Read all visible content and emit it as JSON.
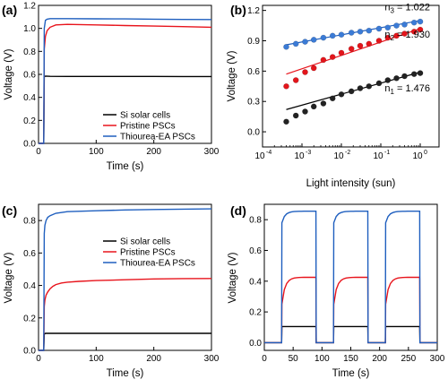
{
  "colors": {
    "si": "#000000",
    "pristine": "#e8141c",
    "thiourea": "#1f5fbf",
    "dot_black": "#222222",
    "dot_red": "#e3151b",
    "dot_blue": "#3b7bd6"
  },
  "chart_data": [
    {
      "panel": "(a)",
      "type": "line",
      "xlabel": "Time (s)",
      "ylabel": "Voltage (V)",
      "xlim": [
        0,
        300
      ],
      "ylim": [
        0,
        1.2
      ],
      "xticks": [
        "0",
        "100",
        "200",
        "300"
      ],
      "yticks": [
        "0.0",
        "0.2",
        "0.4",
        "0.6",
        "0.8",
        "1.0",
        "1.2"
      ],
      "legend_position": "bottom-right",
      "legend": [
        "Si solar cells",
        "Pristine PSCs",
        "Thiourea-EA PSCs"
      ],
      "series": [
        {
          "name": "Si solar cells",
          "x": [
            0,
            9,
            10,
            12,
            20,
            50,
            100,
            150,
            200,
            250,
            300
          ],
          "y": [
            0,
            0,
            0.58,
            0.585,
            0.583,
            0.582,
            0.582,
            0.582,
            0.582,
            0.581,
            0.581
          ]
        },
        {
          "name": "Pristine PSCs",
          "x": [
            0,
            9,
            10,
            12,
            15,
            20,
            30,
            50,
            100,
            150,
            200,
            250,
            300
          ],
          "y": [
            0,
            0,
            0.82,
            0.93,
            0.98,
            1.01,
            1.03,
            1.035,
            1.03,
            1.025,
            1.02,
            1.015,
            1.01
          ]
        },
        {
          "name": "Thiourea-EA PSCs",
          "x": [
            0,
            9,
            10,
            12,
            15,
            20,
            50,
            100,
            150,
            200,
            250,
            300
          ],
          "y": [
            0,
            0,
            1.0,
            1.07,
            1.08,
            1.085,
            1.085,
            1.083,
            1.082,
            1.08,
            1.078,
            1.077
          ]
        }
      ]
    },
    {
      "panel": "(b)",
      "type": "scatter",
      "xlabel": "Light intensity (sun)",
      "ylabel": "Voltage (V)",
      "xscale": "log",
      "xlim": [
        0.0001,
        3
      ],
      "ylim": [
        -0.15,
        1.25
      ],
      "xticks": [
        {
          "v": 0.0001,
          "e": "-4"
        },
        {
          "v": 0.001,
          "e": "-3"
        },
        {
          "v": 0.01,
          "e": "-2"
        },
        {
          "v": 0.1,
          "e": "-1"
        },
        {
          "v": 1,
          "e": "0"
        }
      ],
      "yticks": [
        "0.0",
        "0.3",
        "0.6",
        "0.9",
        "1.2"
      ],
      "annotations": [
        {
          "label": "n",
          "sub": "3",
          "text": " = 1.022",
          "x": 0.55,
          "y": 1.2
        },
        {
          "label": "n",
          "sub": "2",
          "text": " = 1.930",
          "x": 0.55,
          "y": 0.93
        },
        {
          "label": "n",
          "sub": "1",
          "text": " = 1.476",
          "x": 0.55,
          "y": 0.4
        }
      ],
      "series": [
        {
          "name": "n1",
          "x": [
            0.0004,
            0.0007,
            0.0012,
            0.002,
            0.0035,
            0.006,
            0.01,
            0.018,
            0.03,
            0.05,
            0.09,
            0.15,
            0.25,
            0.4,
            0.7,
            1.0
          ],
          "y": [
            0.1,
            0.16,
            0.2,
            0.25,
            0.28,
            0.33,
            0.37,
            0.4,
            0.43,
            0.45,
            0.48,
            0.51,
            0.53,
            0.55,
            0.57,
            0.58
          ],
          "fit": [
            [
              0.0004,
              0.22
            ],
            [
              1.0,
              0.59
            ]
          ]
        },
        {
          "name": "n2",
          "x": [
            0.0004,
            0.0007,
            0.0012,
            0.002,
            0.0035,
            0.006,
            0.01,
            0.018,
            0.03,
            0.05,
            0.09,
            0.15,
            0.25,
            0.4,
            0.7,
            1.0
          ],
          "y": [
            0.45,
            0.51,
            0.59,
            0.63,
            0.71,
            0.74,
            0.78,
            0.82,
            0.85,
            0.87,
            0.9,
            0.93,
            0.95,
            0.97,
            0.99,
            1.01
          ],
          "fit": [
            [
              0.0004,
              0.57
            ],
            [
              1.0,
              1.02
            ]
          ]
        },
        {
          "name": "n3",
          "x": [
            0.0004,
            0.0007,
            0.0012,
            0.002,
            0.0035,
            0.006,
            0.01,
            0.018,
            0.03,
            0.05,
            0.09,
            0.15,
            0.25,
            0.4,
            0.7,
            1.0
          ],
          "y": [
            0.84,
            0.87,
            0.89,
            0.91,
            0.93,
            0.95,
            0.96,
            0.98,
            0.99,
            1.0,
            1.02,
            1.03,
            1.05,
            1.06,
            1.08,
            1.09
          ],
          "fit": [
            [
              0.0004,
              0.86
            ],
            [
              1.0,
              1.1
            ]
          ]
        }
      ]
    },
    {
      "panel": "(c)",
      "type": "line",
      "xlabel": "Time (s)",
      "ylabel": "Voltage (V)",
      "xlim": [
        0,
        300
      ],
      "ylim": [
        0,
        0.9
      ],
      "xticks": [
        "0",
        "100",
        "200",
        "300"
      ],
      "yticks": [
        "0.0",
        "0.2",
        "0.4",
        "0.6",
        "0.8"
      ],
      "legend_position": "center-right",
      "legend": [
        "Si solar cells",
        "Pristine PSCs",
        "Thiourea-EA PSCs"
      ],
      "series": [
        {
          "name": "Si solar cells",
          "x": [
            0,
            9,
            10,
            12,
            50,
            100,
            150,
            200,
            250,
            300
          ],
          "y": [
            0,
            0,
            0.1,
            0.105,
            0.105,
            0.105,
            0.105,
            0.105,
            0.105,
            0.105
          ]
        },
        {
          "name": "Pristine PSCs",
          "x": [
            0,
            9,
            10,
            11,
            13,
            16,
            20,
            25,
            30,
            40,
            50,
            70,
            100,
            150,
            200,
            250,
            300
          ],
          "y": [
            0,
            0,
            0.27,
            0.31,
            0.34,
            0.36,
            0.38,
            0.395,
            0.405,
            0.415,
            0.42,
            0.425,
            0.43,
            0.435,
            0.44,
            0.442,
            0.443
          ]
        },
        {
          "name": "Thiourea-EA PSCs",
          "x": [
            0,
            9,
            10,
            11,
            13,
            16,
            20,
            30,
            50,
            100,
            150,
            200,
            250,
            300
          ],
          "y": [
            0,
            0,
            0.72,
            0.77,
            0.8,
            0.82,
            0.83,
            0.845,
            0.855,
            0.86,
            0.865,
            0.868,
            0.87,
            0.872
          ]
        }
      ]
    },
    {
      "panel": "(d)",
      "type": "line",
      "xlabel": "Time (s)",
      "ylabel": "Voltage (V)",
      "xlim": [
        0,
        300
      ],
      "ylim": [
        -0.05,
        0.9
      ],
      "xticks": [
        "0",
        "50",
        "100",
        "150",
        "200",
        "250",
        "300"
      ],
      "yticks": [
        "0.0",
        "0.2",
        "0.4",
        "0.6",
        "0.8"
      ],
      "on_intervals": [
        [
          30,
          90
        ],
        [
          120,
          180
        ],
        [
          210,
          270
        ]
      ],
      "series": [
        {
          "name": "Si solar cells",
          "plateau": 0.105
        },
        {
          "name": "Pristine PSCs",
          "jump": 0.25,
          "plateau": 0.425
        },
        {
          "name": "Thiourea-EA PSCs",
          "jump": 0.78,
          "plateau": 0.855
        }
      ]
    }
  ]
}
